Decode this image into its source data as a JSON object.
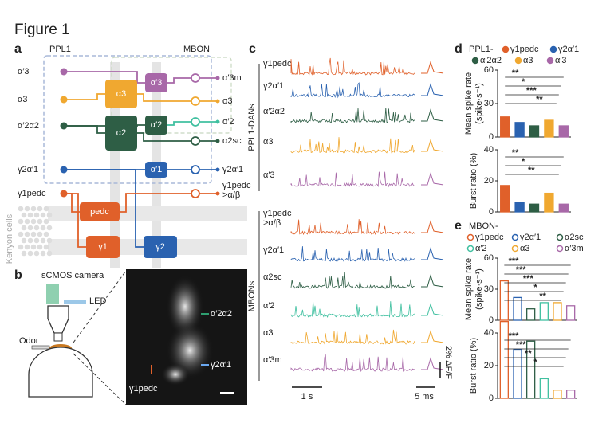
{
  "figure_title": "Figure 1",
  "panel_a": {
    "label": "a",
    "ppl1": "PPL1",
    "mbon": "MBON",
    "inputs": [
      "α′3",
      "α3",
      "α′2α2",
      "γ2α′1",
      "γ1pedc"
    ],
    "compartments": [
      "α′3",
      "α3",
      "α′2",
      "α2",
      "α′1",
      "pedc",
      "γ1",
      "γ2"
    ],
    "mbons": [
      [
        "α′3m"
      ],
      [
        "α3"
      ],
      [
        "α′2"
      ],
      [
        "α2sc"
      ],
      [
        "γ2α′1"
      ],
      [
        "γ1pedc",
        ">α/β"
      ]
    ],
    "kenyon": "Kenyon cells"
  },
  "panel_b": {
    "label": "b",
    "camera": "sCMOS camera",
    "led": "LED",
    "odor": "Odor",
    "image_labels": [
      "α′2α2",
      "γ2α′1",
      "γ1pedc"
    ]
  },
  "panel_c": {
    "label": "c",
    "group_dans": "PPL1-DANs",
    "group_mbons": "MBONs",
    "dan_traces": [
      {
        "label": [
          "γ1pedc"
        ],
        "color": "#e0602a"
      },
      {
        "label": [
          "γ2α′1"
        ],
        "color": "#2a62b0"
      },
      {
        "label": [
          "α′2α2"
        ],
        "color": "#2e5e45"
      },
      {
        "label": [
          "α3"
        ],
        "color": "#f0a830"
      },
      {
        "label": [
          "α′3"
        ],
        "color": "#a868a8"
      }
    ],
    "mbon_traces": [
      {
        "label": [
          "γ1pedc",
          ">α/β"
        ],
        "color": "#e0602a"
      },
      {
        "label": [
          "γ2α′1"
        ],
        "color": "#2a62b0"
      },
      {
        "label": [
          "α2sc"
        ],
        "color": "#2e5e45"
      },
      {
        "label": [
          "α′2"
        ],
        "color": "#40c0a0"
      },
      {
        "label": [
          "α3"
        ],
        "color": "#f0a830"
      },
      {
        "label": [
          "α′3m"
        ],
        "color": "#a868a8"
      }
    ],
    "scale_time": "1 s",
    "scale_spike": "5 ms",
    "scale_dff": "2% ΔF/F"
  },
  "panel_d": {
    "label": "d",
    "legend_title": "PPL1-",
    "legend": [
      {
        "name": "γ1pedc",
        "color": "#e0602a"
      },
      {
        "name": "γ2α′1",
        "color": "#2a62b0"
      },
      {
        "name": "α′2α2",
        "color": "#2e5e45"
      },
      {
        "name": "α3",
        "color": "#f0a830"
      },
      {
        "name": "α′3",
        "color": "#a868a8"
      }
    ],
    "charts": [
      {
        "type": "bar",
        "ylabel": [
          "Mean spike rate",
          "(spike·s⁻¹)"
        ],
        "ylim": [
          0,
          60
        ],
        "yticks": [
          0,
          30,
          60
        ],
        "values": [
          18,
          13,
          10,
          15,
          10
        ],
        "significance": [
          "**",
          "*",
          "***",
          "**"
        ]
      },
      {
        "type": "bar",
        "ylabel": [
          "Burst ratio (%)"
        ],
        "ylim": [
          0,
          40
        ],
        "yticks": [
          0,
          20,
          40
        ],
        "values": [
          17,
          6,
          5,
          12,
          5
        ],
        "significance": [
          "**",
          "*",
          "**"
        ]
      }
    ]
  },
  "panel_e": {
    "label": "e",
    "legend_title": "MBON-",
    "legend": [
      {
        "name": "γ1pedc",
        "color": "#e0602a"
      },
      {
        "name": "γ2α′1",
        "color": "#2a62b0"
      },
      {
        "name": "α2sc",
        "color": "#2e5e45"
      },
      {
        "name": "α′2",
        "color": "#40c0a0"
      },
      {
        "name": "α3",
        "color": "#f0a830"
      },
      {
        "name": "α′3m",
        "color": "#a868a8"
      }
    ],
    "charts": [
      {
        "type": "bar",
        "ylabel": [
          "Mean spike rate",
          "(spike·s⁻¹)"
        ],
        "ylim": [
          0,
          60
        ],
        "yticks": [
          0,
          30,
          60
        ],
        "values": [
          38,
          22,
          11,
          17,
          17,
          14
        ],
        "significance": [
          "***",
          "***",
          "***",
          "*",
          "**"
        ]
      },
      {
        "type": "bar",
        "ylabel": [
          "Burst ratio (%)"
        ],
        "ylim": [
          0,
          40
        ],
        "yticks": [
          0,
          20,
          40
        ],
        "values": [
          47,
          30,
          35,
          12,
          5,
          5
        ],
        "significance": [
          "***",
          "***",
          "**",
          "*"
        ]
      }
    ]
  }
}
